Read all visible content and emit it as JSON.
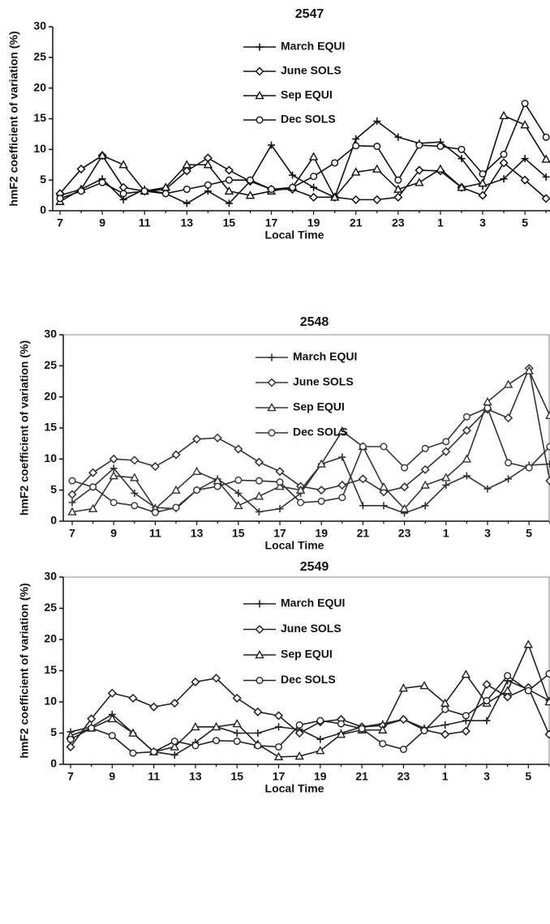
{
  "chart_data": [
    {
      "type": "line",
      "title": "2547",
      "x_label": "Local Time",
      "y_label": "hmF2 coefficient of variation (%)",
      "categories": [
        7,
        null,
        9,
        null,
        11,
        null,
        13,
        null,
        15,
        null,
        17,
        null,
        19,
        null,
        21,
        null,
        23,
        null,
        1,
        null,
        3,
        null,
        5,
        null
      ],
      "ylim": [
        0,
        30
      ],
      "yticks": [
        0,
        5,
        10,
        15,
        20,
        25,
        30
      ],
      "frame": false,
      "series": [
        {
          "name": "March EQUI",
          "color": "#111111",
          "marker": "plus",
          "values": [
            2.5,
            3.5,
            5.2,
            1.8,
            3.5,
            2.8,
            1.2,
            3.2,
            1.2,
            4.8,
            10.7,
            5.8,
            3.8,
            2.2,
            11.7,
            14.6,
            12,
            11,
            11.2,
            8.5,
            4,
            5.2,
            8.5,
            5.5
          ]
        },
        {
          "name": "June SOLS",
          "color": "#111111",
          "marker": "diamond",
          "values": [
            2.8,
            6.8,
            9,
            3.8,
            3.2,
            3.5,
            6.5,
            8.6,
            6.6,
            4.8,
            3.5,
            3.5,
            2.2,
            2.2,
            1.8,
            1.8,
            2.2,
            6.6,
            6.5,
            3.8,
            2.5,
            7.8,
            5,
            2
          ]
        },
        {
          "name": "Sep EQUI",
          "color": "#111111",
          "marker": "triangle",
          "values": [
            1.5,
            3.5,
            9,
            7.5,
            3.2,
            3.8,
            7.5,
            7.5,
            3.2,
            2.5,
            3.2,
            3.8,
            8.8,
            2.2,
            6.3,
            6.8,
            3.5,
            4.6,
            6.8,
            3.8,
            4.5,
            15.5,
            14,
            8.4
          ]
        },
        {
          "name": "Dec SOLS",
          "color": "#111111",
          "marker": "circle",
          "values": [
            2,
            3.2,
            4.6,
            2.8,
            3.2,
            2.8,
            3.5,
            4.2,
            5,
            5,
            3.5,
            3.8,
            5.6,
            7.8,
            10.6,
            10.5,
            5,
            10.7,
            10.5,
            10,
            6,
            9.2,
            17.5,
            12
          ]
        }
      ]
    },
    {
      "type": "line",
      "title": "2548",
      "x_label": "Local Time",
      "y_label": "hmF2 coefficient of variation (%)",
      "categories": [
        7,
        null,
        9,
        null,
        11,
        null,
        13,
        null,
        15,
        null,
        17,
        null,
        19,
        null,
        21,
        null,
        23,
        null,
        1,
        null,
        3,
        null,
        5,
        null
      ],
      "ylim": [
        0,
        30
      ],
      "yticks": [
        0,
        5,
        10,
        15,
        20,
        25,
        30
      ],
      "frame": true,
      "series": [
        {
          "name": "March EQUI",
          "color": "#333333",
          "marker": "plus",
          "values": [
            3,
            5.5,
            8.5,
            4.5,
            2.2,
            2,
            5,
            6.8,
            4.5,
            1.5,
            2,
            4.5,
            9.2,
            10.3,
            2.5,
            2.5,
            1.3,
            2.5,
            5.8,
            7.3,
            5.2,
            6.8,
            9,
            9.2
          ]
        },
        {
          "name": "June SOLS",
          "color": "#333333",
          "marker": "diamond",
          "values": [
            4.3,
            7.8,
            10,
            9.8,
            8.8,
            10.7,
            13.2,
            13.4,
            11.6,
            9.5,
            8,
            5.6,
            5,
            5.8,
            6.8,
            4.7,
            5.5,
            8.3,
            11.2,
            14.6,
            18,
            16.6,
            24.6,
            6.5
          ]
        },
        {
          "name": "Sep EQUI",
          "color": "#333333",
          "marker": "triangle",
          "values": [
            1.5,
            2,
            7.3,
            7,
            2,
            5,
            8,
            6.5,
            2.5,
            4,
            5.6,
            5,
            9.2,
            14.5,
            12,
            5.5,
            2,
            5.8,
            7,
            10,
            19.2,
            22,
            24.2,
            17
          ]
        },
        {
          "name": "Dec SOLS",
          "color": "#333333",
          "marker": "circle",
          "values": [
            6.5,
            5.5,
            3,
            2.5,
            1.4,
            2.2,
            5,
            5.6,
            6.6,
            6.5,
            6.3,
            3,
            3.2,
            3.8,
            12,
            12,
            8.6,
            11.7,
            12.8,
            16.8,
            18.2,
            9.4,
            8.6,
            12
          ]
        }
      ]
    },
    {
      "type": "line",
      "title": "2549",
      "x_label": "Local Time",
      "y_label": "hmF2 coefficient of variation (%)",
      "categories": [
        7,
        null,
        9,
        null,
        11,
        null,
        13,
        null,
        15,
        null,
        17,
        null,
        19,
        null,
        21,
        null,
        23,
        null,
        1,
        null,
        3,
        null,
        5,
        null
      ],
      "ylim": [
        0,
        30
      ],
      "yticks": [
        0,
        5,
        10,
        15,
        20,
        25,
        30
      ],
      "frame": true,
      "series": [
        {
          "name": "March EQUI",
          "color": "#222222",
          "marker": "plus",
          "values": [
            5.2,
            6,
            8,
            5,
            2,
            1.5,
            3.5,
            6,
            5,
            5,
            6,
            5.6,
            4,
            5,
            6,
            6.5,
            7.2,
            5.8,
            6.3,
            7,
            7,
            13.4,
            12,
            10.2
          ]
        },
        {
          "name": "June SOLS",
          "color": "#222222",
          "marker": "diamond",
          "values": [
            2.8,
            7.3,
            11.4,
            10.6,
            9.2,
            9.8,
            13.2,
            13.8,
            10.6,
            8.4,
            7.8,
            5,
            6.8,
            7.2,
            6,
            6.2,
            7.2,
            5.5,
            4.8,
            5.3,
            12.8,
            10.8,
            12.3,
            4.8
          ]
        },
        {
          "name": "Sep EQUI",
          "color": "#222222",
          "marker": "triangle",
          "values": [
            4.6,
            5.8,
            7.3,
            5,
            2,
            2.8,
            6,
            6,
            6.5,
            3.2,
            1.2,
            1.3,
            2.2,
            4.8,
            5.5,
            5.5,
            12.2,
            12.6,
            9.8,
            14.4,
            9.8,
            11.8,
            19.2,
            10
          ]
        },
        {
          "name": "Dec SOLS",
          "color": "#222222",
          "marker": "circle",
          "values": [
            4,
            5.8,
            4.6,
            1.8,
            2,
            3.7,
            3,
            3.8,
            3.7,
            3,
            2.8,
            6.3,
            7,
            6.5,
            5.7,
            3.3,
            2.4,
            5.4,
            8.8,
            7.8,
            10.2,
            14.2,
            11.8,
            14.5
          ]
        }
      ]
    }
  ]
}
